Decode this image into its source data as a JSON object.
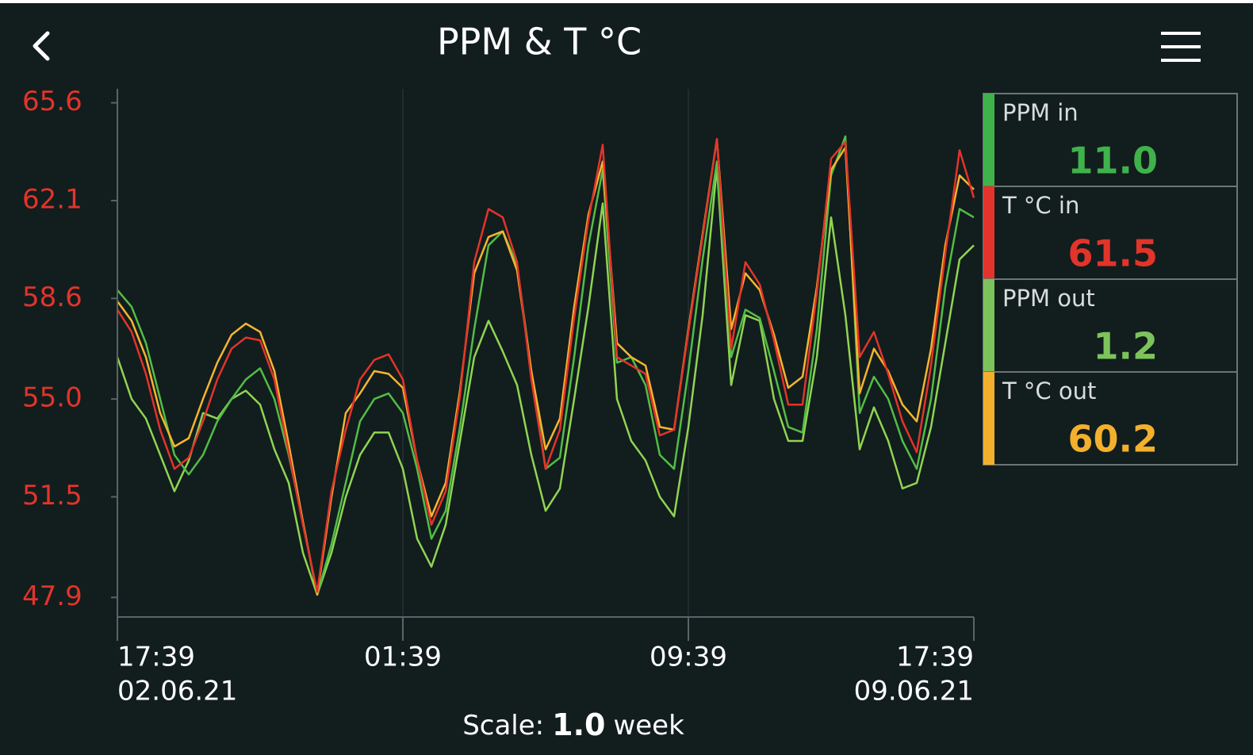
{
  "chart_data": {
    "type": "line",
    "title": "PPM & T °C",
    "x": [
      0,
      1,
      2,
      3,
      4,
      5,
      6,
      7,
      8,
      9,
      10,
      11,
      12,
      13,
      14,
      15,
      16,
      17,
      18,
      19,
      20,
      21,
      22,
      23,
      24,
      25,
      26,
      27,
      28,
      29,
      30,
      31,
      32,
      33,
      34,
      35,
      36,
      37,
      38,
      39,
      40,
      41,
      42,
      43,
      44,
      45,
      46,
      47,
      48,
      49,
      50,
      51,
      52,
      53,
      54,
      55,
      56,
      57,
      58,
      59,
      60
    ],
    "xlim": [
      0,
      60
    ],
    "xticks": [
      {
        "value": 0,
        "label": "17:39",
        "date": "02.06.21"
      },
      {
        "value": 20,
        "label": "01:39"
      },
      {
        "value": 40,
        "label": "09:39"
      },
      {
        "value": 60,
        "label": "17:39",
        "date": "09.06.21"
      }
    ],
    "ylim": [
      47.2,
      66.1
    ],
    "yticks": [
      47.9,
      51.5,
      {
        "value": 55,
        "label": "55.0"
      },
      58.6,
      62.1,
      65.6
    ],
    "grid": true,
    "series": [
      {
        "name": "PPM in",
        "color": "#3fb24b",
        "line_color": "#52bd45",
        "current": "11.0",
        "values": [
          58.9,
          58.3,
          57.0,
          55.0,
          53.0,
          52.3,
          53.0,
          54.2,
          55.0,
          55.7,
          56.1,
          55.0,
          53.0,
          50.6,
          48.0,
          49.8,
          52.0,
          54.2,
          55.0,
          55.2,
          54.5,
          52.5,
          50.0,
          51.0,
          54.0,
          57.5,
          60.5,
          61.0,
          59.8,
          56.0,
          52.5,
          52.9,
          56.5,
          60.5,
          63.2,
          56.3,
          56.5,
          55.5,
          53.0,
          52.5,
          56.0,
          60.0,
          63.5,
          56.5,
          58.2,
          57.9,
          56.0,
          54.0,
          53.8,
          57.5,
          63.0,
          64.4,
          54.5,
          55.8,
          55.0,
          53.5,
          52.5,
          55.0,
          59.0,
          61.8,
          61.5
        ]
      },
      {
        "name": "T °C in",
        "color": "#e2342a",
        "line_color": "#e2342a",
        "current": "61.5",
        "values": [
          58.2,
          57.4,
          55.9,
          53.9,
          52.5,
          52.9,
          54.2,
          55.7,
          56.8,
          57.2,
          57.1,
          55.7,
          53.1,
          50.5,
          48.1,
          51.7,
          53.9,
          55.7,
          56.4,
          56.6,
          55.7,
          52.8,
          50.5,
          51.7,
          55.1,
          59.9,
          61.8,
          61.5,
          59.9,
          55.7,
          52.5,
          53.9,
          57.9,
          61.4,
          64.1,
          56.5,
          56.2,
          55.9,
          53.7,
          53.9,
          57.4,
          60.8,
          64.3,
          56.8,
          59.9,
          59.1,
          57.1,
          54.8,
          54.8,
          58.8,
          63.6,
          64.2,
          56.5,
          57.4,
          55.9,
          54.2,
          53.1,
          56.2,
          60.2,
          63.9,
          62.2
        ]
      },
      {
        "name": "PPM out",
        "color": "#7cc35b",
        "line_color": "#90d451",
        "current": "1.2",
        "values": [
          56.5,
          55.0,
          54.3,
          53.0,
          51.7,
          52.8,
          54.5,
          54.3,
          55.0,
          55.3,
          54.8,
          53.2,
          52.0,
          49.5,
          48.0,
          49.5,
          51.5,
          53.0,
          53.8,
          53.8,
          52.5,
          50.0,
          49.0,
          50.5,
          53.5,
          56.5,
          57.8,
          56.7,
          55.5,
          53.0,
          51.0,
          51.8,
          55.0,
          58.3,
          62.0,
          55.0,
          53.5,
          52.8,
          51.5,
          50.8,
          54.0,
          58.0,
          63.3,
          55.5,
          58.0,
          57.8,
          55.0,
          53.5,
          53.5,
          56.5,
          61.5,
          58.0,
          53.2,
          54.7,
          53.5,
          51.8,
          52.0,
          54.0,
          57.0,
          60.0,
          60.5
        ]
      },
      {
        "name": "T °C out",
        "color": "#f3b02d",
        "line_color": "#f5b52f",
        "current": "60.2",
        "values": [
          58.5,
          57.8,
          56.5,
          54.5,
          53.3,
          53.6,
          55.0,
          56.3,
          57.3,
          57.7,
          57.4,
          56.0,
          53.4,
          50.6,
          48.0,
          51.5,
          54.5,
          55.2,
          56.0,
          55.9,
          55.4,
          52.8,
          50.8,
          52.0,
          55.3,
          59.5,
          60.8,
          61.0,
          59.6,
          56.0,
          53.2,
          54.3,
          58.3,
          61.6,
          63.5,
          57.0,
          56.5,
          56.2,
          54.0,
          53.9,
          57.5,
          60.9,
          64.3,
          57.5,
          59.5,
          58.9,
          57.3,
          55.4,
          55.8,
          59.0,
          63.2,
          64.0,
          55.2,
          56.8,
          56.0,
          54.8,
          54.2,
          56.8,
          60.5,
          63.0,
          62.5
        ]
      }
    ],
    "scale_label": "Scale:",
    "scale_value": "1.0",
    "scale_unit": "week"
  }
}
